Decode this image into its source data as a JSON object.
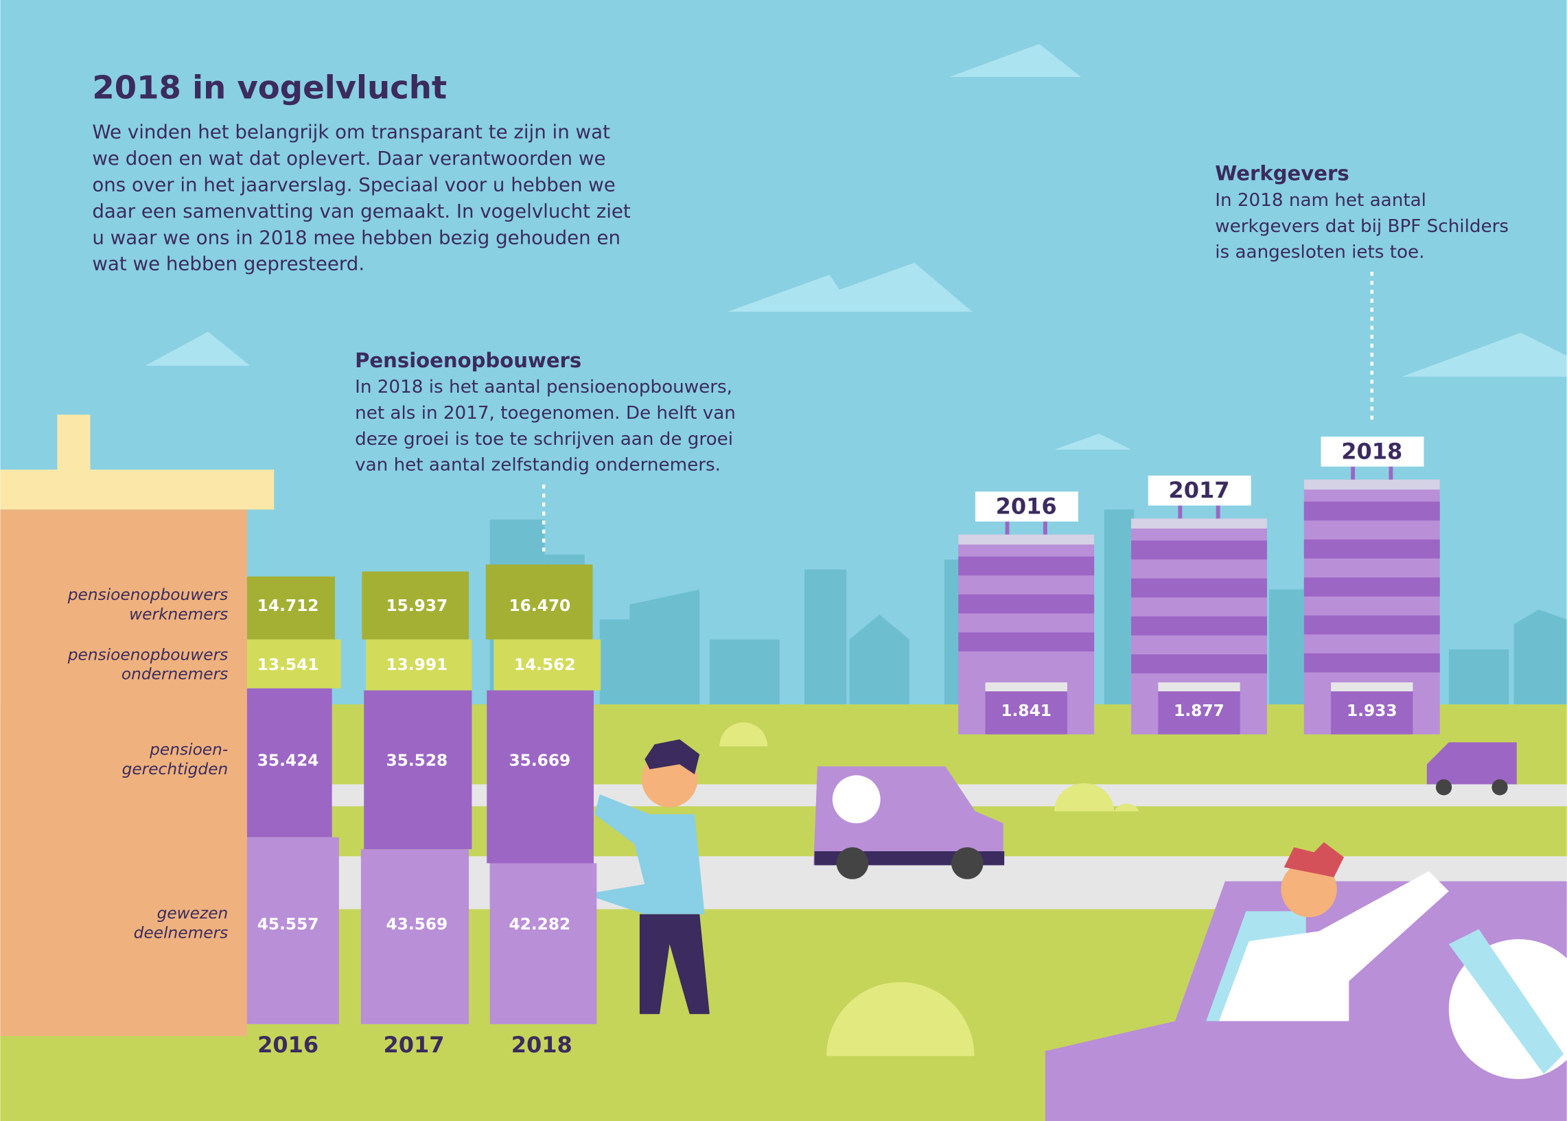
{
  "title": "2018 in vogelvlucht",
  "intro": [
    "We vinden het belangrijk om transparant te zijn in wat",
    "we doen en wat dat oplevert. Daar verantwoorden we",
    "ons over in het jaarverslag. Speciaal voor u hebben we",
    "daar een samenvatting van gemaakt. In vogelvlucht ziet",
    "u waar we ons in 2018 mee hebben bezig gehouden en",
    "wat we hebben gepresteerd."
  ],
  "pensioenopbouwers": {
    "heading": "Pensioenopbouwers",
    "text": [
      "In 2018 is het aantal pensioenopbouwers,",
      "net als in 2017, toegenomen. De helft van",
      "deze groei is toe te schrijven aan de groei",
      "van het aantal zelfstandig ondernemers."
    ],
    "years": [
      "2016",
      "2017",
      "2018"
    ],
    "rows": [
      {
        "label": [
          "pensioenopbouwers",
          "werknemers"
        ],
        "values": [
          "14.712",
          "15.937",
          "16.470"
        ]
      },
      {
        "label": [
          "pensioenopbouwers",
          "ondernemers"
        ],
        "values": [
          "13.541",
          "13.991",
          "14.562"
        ]
      },
      {
        "label": [
          "pensioen-",
          "gerechtigden"
        ],
        "values": [
          "35.424",
          "35.528",
          "35.669"
        ]
      },
      {
        "label": [
          "gewezen",
          "deelnemers"
        ],
        "values": [
          "45.557",
          "43.569",
          "42.282"
        ]
      }
    ]
  },
  "werkgevers": {
    "heading": "Werkgevers",
    "text": [
      "In 2018 nam het aantal",
      "werkgevers dat bij BPF Schilders",
      "is aangesloten iets toe."
    ],
    "years": [
      "2016",
      "2017",
      "2018"
    ],
    "values": [
      "1.841",
      "1.877",
      "1.933"
    ]
  }
}
